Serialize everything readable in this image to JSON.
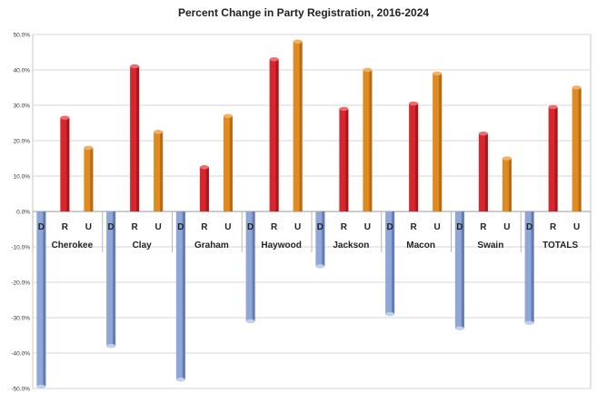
{
  "chart_data": {
    "type": "bar",
    "title": "Percent Change in Party Registration, 2016-2024",
    "xlabel": "",
    "ylabel": "",
    "ylim": [
      -50,
      50
    ],
    "yticks": [
      "50.0%",
      "40.0%",
      "30.0%",
      "20.0%",
      "10.0%",
      "0.0%",
      "-10.0%",
      "-20.0%",
      "-30.0%",
      "-40.0%",
      "-50.0%"
    ],
    "categories": [
      "Cherokee",
      "Clay",
      "Graham",
      "Haywood",
      "Jackson",
      "Macon",
      "Swain",
      "TOTALS"
    ],
    "party_labels": [
      "D",
      "R",
      "U"
    ],
    "series": [
      {
        "name": "D",
        "color": "#8fa6d6",
        "values": [
          -49.5,
          -38,
          -47.5,
          -31,
          -15.5,
          -29,
          -33,
          -31.5
        ]
      },
      {
        "name": "R",
        "color": "#d7262e",
        "values": [
          26.5,
          41,
          12.5,
          43,
          29,
          30.5,
          22,
          29.5
        ]
      },
      {
        "name": "U",
        "color": "#e08a22",
        "values": [
          18,
          22.5,
          27,
          48,
          40,
          39,
          15,
          35
        ]
      }
    ],
    "grid": true,
    "legend": "none"
  }
}
